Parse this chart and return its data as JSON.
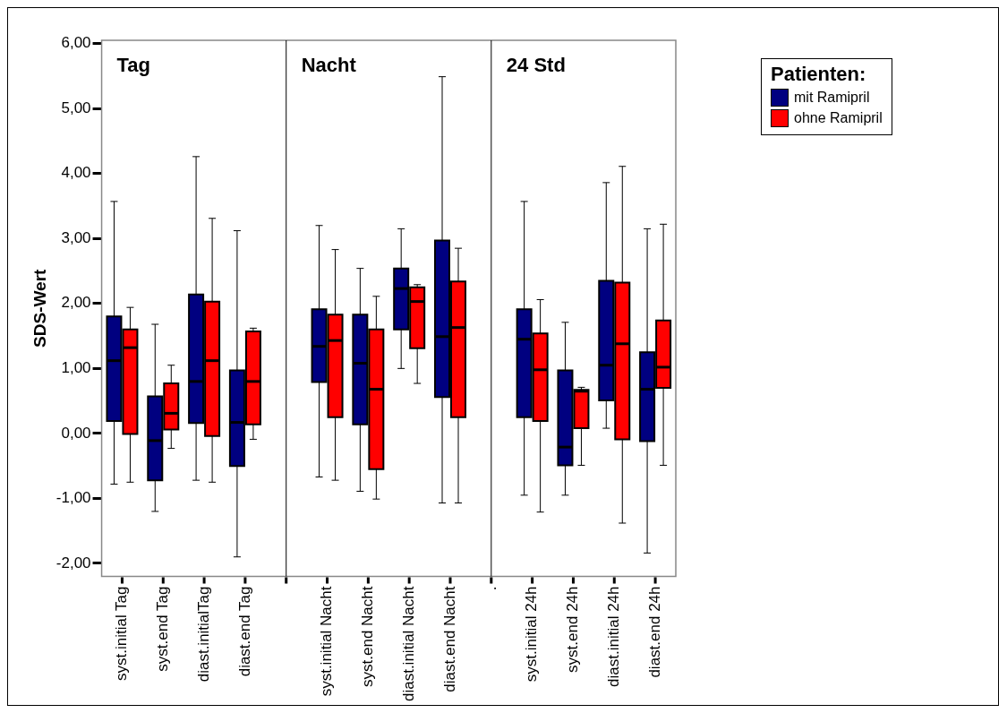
{
  "chart_data": {
    "type": "box",
    "ylabel": "SDS-Wert",
    "legend_title": "Patienten:",
    "legend": "top right",
    "categories": [
      "syst.initial Tag",
      "syst.end Tag",
      "diast.initialTag",
      "diast.end Tag",
      null,
      "syst.initial Nacht",
      "syst.end Nacht",
      "diast.initial Nacht",
      "diast.end Nacht",
      ".",
      "syst.initial 24h",
      "syst.end 24h",
      "diast.initial 24h",
      "diast.end 24h"
    ],
    "ylim": [
      -2.2,
      6.05
    ],
    "yticks": [
      {
        "value": -2,
        "label": "-2,00"
      },
      {
        "value": -1,
        "label": "-1,00"
      },
      {
        "value": 0,
        "label": "0,00"
      },
      {
        "value": 1,
        "label": "1,00"
      },
      {
        "value": 2,
        "label": "2,00"
      },
      {
        "value": 3,
        "label": "3,00"
      },
      {
        "value": 4,
        "label": "4,00"
      },
      {
        "value": 5,
        "label": "5,00"
      },
      {
        "value": 6,
        "label": "6,00"
      }
    ],
    "ref_lines": [
      {
        "axis": "x",
        "value": null,
        "color": "#000000"
      },
      {
        "axis": "x",
        "value": ".",
        "color": "#000000"
      }
    ],
    "annotations": [
      "Tag",
      "Nacht",
      "24 Std"
    ],
    "series": [
      {
        "name": "mit Ramipril",
        "color": "#000080",
        "boxes": [
          {
            "low": -0.78,
            "q1": 0.19,
            "median": 1.12,
            "q3": 1.8,
            "high": 3.57
          },
          {
            "low": -1.2,
            "q1": -0.72,
            "median": -0.11,
            "q3": 0.57,
            "high": 1.68
          },
          {
            "low": -0.72,
            "q1": 0.16,
            "median": 0.8,
            "q3": 2.14,
            "high": 4.26
          },
          {
            "low": -1.9,
            "q1": -0.5,
            "median": 0.17,
            "q3": 0.97,
            "high": 3.12
          },
          null,
          {
            "low": -0.67,
            "q1": 0.79,
            "median": 1.34,
            "q3": 1.91,
            "high": 3.2
          },
          {
            "low": -0.89,
            "q1": 0.14,
            "median": 1.08,
            "q3": 1.83,
            "high": 2.54
          },
          {
            "low": 1.0,
            "q1": 1.6,
            "median": 2.23,
            "q3": 2.54,
            "high": 3.15
          },
          {
            "low": -1.07,
            "q1": 0.56,
            "median": 1.49,
            "q3": 2.97,
            "high": 5.49
          },
          null,
          {
            "low": -0.95,
            "q1": 0.25,
            "median": 1.45,
            "q3": 1.91,
            "high": 3.57
          },
          {
            "low": -0.95,
            "q1": -0.49,
            "median": -0.21,
            "q3": 0.97,
            "high": 1.71
          },
          {
            "low": 0.08,
            "q1": 0.51,
            "median": 1.05,
            "q3": 2.35,
            "high": 3.86
          },
          {
            "low": -1.84,
            "q1": -0.12,
            "median": 0.68,
            "q3": 1.25,
            "high": 3.15
          }
        ]
      },
      {
        "name": "ohne Ramipril",
        "color": "#ff0000",
        "boxes": [
          {
            "low": -0.75,
            "q1": -0.01,
            "median": 1.32,
            "q3": 1.6,
            "high": 1.94
          },
          {
            "low": -0.23,
            "q1": 0.06,
            "median": 0.31,
            "q3": 0.77,
            "high": 1.05
          },
          {
            "low": -0.75,
            "q1": -0.04,
            "median": 1.12,
            "q3": 2.03,
            "high": 3.31
          },
          {
            "low": -0.09,
            "q1": 0.14,
            "median": 0.8,
            "q3": 1.57,
            "high": 1.62
          },
          null,
          {
            "low": -0.72,
            "q1": 0.25,
            "median": 1.43,
            "q3": 1.83,
            "high": 2.83
          },
          {
            "low": -1.01,
            "q1": -0.55,
            "median": 0.68,
            "q3": 1.6,
            "high": 2.11
          },
          {
            "low": 0.77,
            "q1": 1.31,
            "median": 2.03,
            "q3": 2.25,
            "high": 2.29
          },
          {
            "low": -1.07,
            "q1": 0.25,
            "median": 1.63,
            "q3": 2.34,
            "high": 2.85
          },
          null,
          {
            "low": -1.21,
            "q1": 0.19,
            "median": 0.98,
            "q3": 1.54,
            "high": 2.06
          },
          {
            "low": -0.49,
            "q1": 0.08,
            "median": 0.65,
            "q3": 0.67,
            "high": 0.71
          },
          {
            "low": -1.38,
            "q1": -0.09,
            "median": 1.38,
            "q3": 2.32,
            "high": 4.11
          },
          {
            "low": -0.49,
            "q1": 0.7,
            "median": 1.02,
            "q3": 1.74,
            "high": 3.22
          }
        ]
      }
    ]
  }
}
